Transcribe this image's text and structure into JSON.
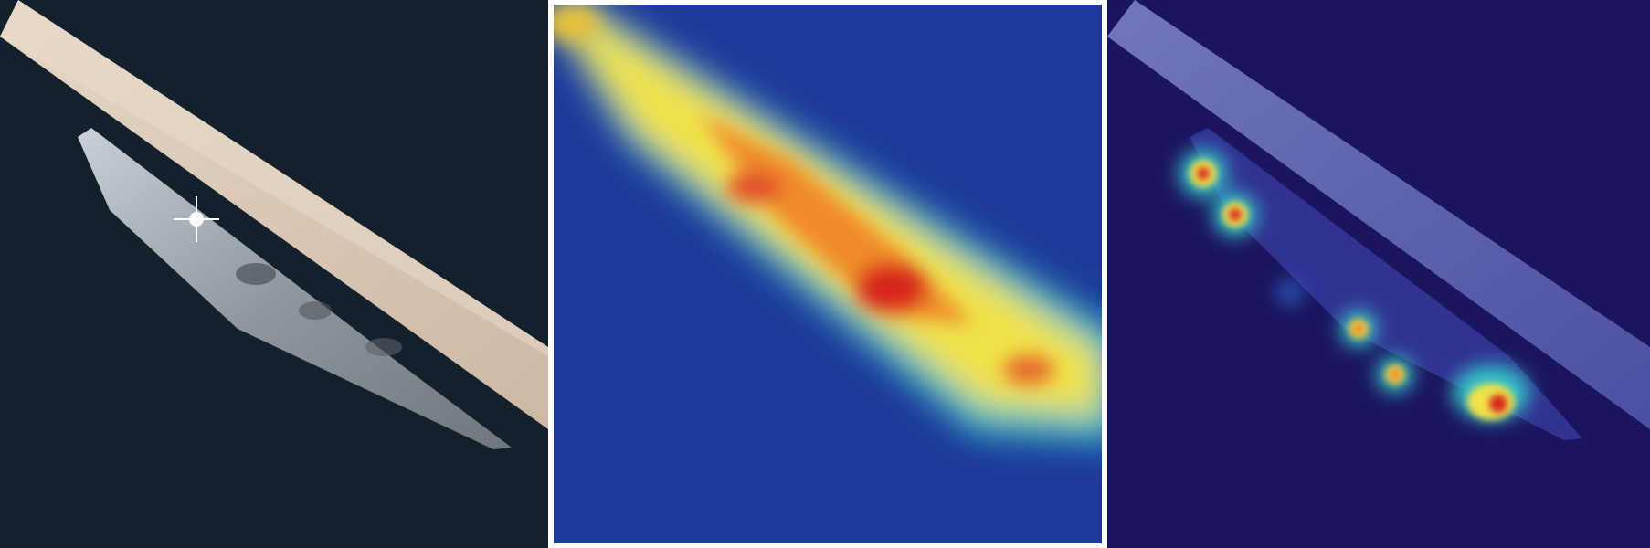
{
  "figure": {
    "panels": [
      {
        "id": "original",
        "kind": "photograph"
      },
      {
        "id": "heatmap_a",
        "kind": "attention-overlay"
      },
      {
        "id": "heatmap_b",
        "kind": "attention-overlay"
      }
    ],
    "colors": {
      "water_dark": "#14202c",
      "pier": "#d8c7b4",
      "ship_hull": "#9aa2a8",
      "divider": "#ffffff",
      "heat_low": "#1b2f8a",
      "heat_mid": "#f2e34a",
      "heat_high": "#d8261c",
      "heat_b_bg": "#1b1560"
    }
  }
}
